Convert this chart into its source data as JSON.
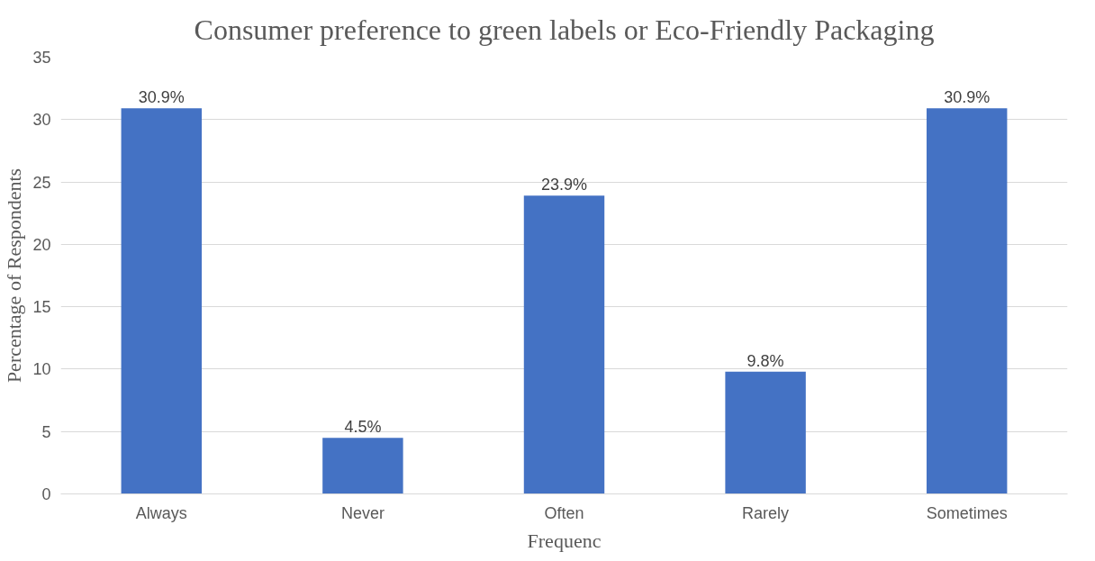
{
  "chart_data": {
    "type": "bar",
    "title": "Consumer preference to green labels or Eco-Friendly Packaging",
    "xlabel": "Frequenc",
    "ylabel": "Percentage of Respondents",
    "categories": [
      "Always",
      "Never",
      "Often",
      "Rarely",
      "Sometimes"
    ],
    "values": [
      30.9,
      4.5,
      23.9,
      9.8,
      30.9
    ],
    "value_labels": [
      "30.9%",
      "4.5%",
      "23.9%",
      "9.8%",
      "30.9%"
    ],
    "color": "#4472c4",
    "ylim": [
      0,
      35
    ],
    "yticks": [
      0,
      5,
      10,
      15,
      20,
      25,
      30,
      35
    ],
    "grid": "y"
  }
}
